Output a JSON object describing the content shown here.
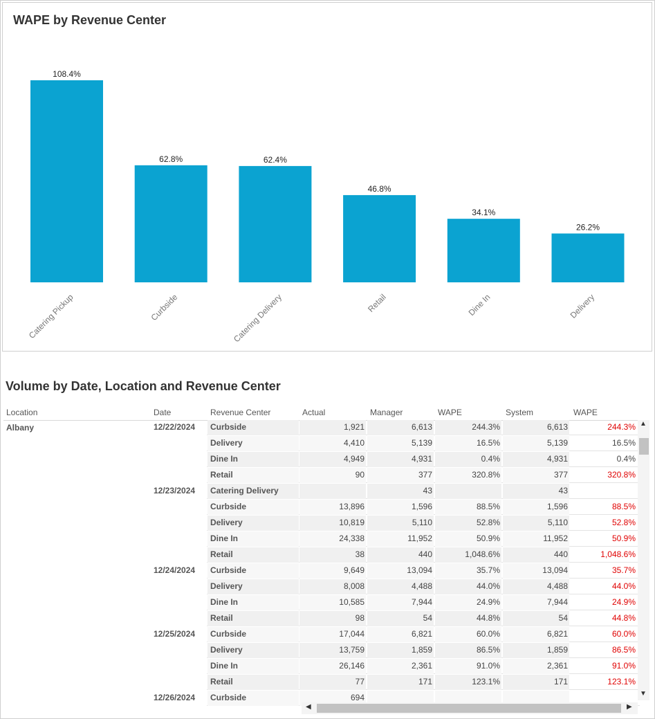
{
  "chart_title": "WAPE by Revenue Center",
  "chart_data": {
    "type": "bar",
    "title": "WAPE by Revenue Center",
    "categories": [
      "Catering Pickup",
      "Curbside",
      "Catering Delivery",
      "Retail",
      "Dine In",
      "Delivery"
    ],
    "values": [
      108.4,
      62.8,
      62.4,
      46.8,
      34.1,
      26.2
    ],
    "labels": [
      "108.4%",
      "62.8%",
      "62.4%",
      "46.8%",
      "34.1%",
      "26.2%"
    ],
    "ylim": [
      0,
      108.4
    ],
    "grid": false,
    "bar_color": "#0ba3d1"
  },
  "table": {
    "title": "Volume by Date, Location and Revenue Center",
    "headers": [
      "Location",
      "Date",
      "Revenue Center",
      "Actual",
      "Manager",
      "WAPE",
      "System",
      "WAPE"
    ],
    "location": "Albany",
    "highlight_color": "#e00000",
    "rows": [
      {
        "date": "12/22/2024",
        "center": "Curbside",
        "actual": "1,921",
        "manager": "6,613",
        "mwape": "244.3%",
        "system": "6,613",
        "swape": "244.3%",
        "red": true
      },
      {
        "date": "",
        "center": "Delivery",
        "actual": "4,410",
        "manager": "5,139",
        "mwape": "16.5%",
        "system": "5,139",
        "swape": "16.5%",
        "red": false
      },
      {
        "date": "",
        "center": "Dine In",
        "actual": "4,949",
        "manager": "4,931",
        "mwape": "0.4%",
        "system": "4,931",
        "swape": "0.4%",
        "red": false
      },
      {
        "date": "",
        "center": "Retail",
        "actual": "90",
        "manager": "377",
        "mwape": "320.8%",
        "system": "377",
        "swape": "320.8%",
        "red": true
      },
      {
        "date": "12/23/2024",
        "center": "Catering Delivery",
        "actual": "",
        "manager": "43",
        "mwape": "",
        "system": "43",
        "swape": "",
        "red": false
      },
      {
        "date": "",
        "center": "Curbside",
        "actual": "13,896",
        "manager": "1,596",
        "mwape": "88.5%",
        "system": "1,596",
        "swape": "88.5%",
        "red": true
      },
      {
        "date": "",
        "center": "Delivery",
        "actual": "10,819",
        "manager": "5,110",
        "mwape": "52.8%",
        "system": "5,110",
        "swape": "52.8%",
        "red": true
      },
      {
        "date": "",
        "center": "Dine In",
        "actual": "24,338",
        "manager": "11,952",
        "mwape": "50.9%",
        "system": "11,952",
        "swape": "50.9%",
        "red": true
      },
      {
        "date": "",
        "center": "Retail",
        "actual": "38",
        "manager": "440",
        "mwape": "1,048.6%",
        "system": "440",
        "swape": "1,048.6%",
        "red": true
      },
      {
        "date": "12/24/2024",
        "center": "Curbside",
        "actual": "9,649",
        "manager": "13,094",
        "mwape": "35.7%",
        "system": "13,094",
        "swape": "35.7%",
        "red": true
      },
      {
        "date": "",
        "center": "Delivery",
        "actual": "8,008",
        "manager": "4,488",
        "mwape": "44.0%",
        "system": "4,488",
        "swape": "44.0%",
        "red": true
      },
      {
        "date": "",
        "center": "Dine In",
        "actual": "10,585",
        "manager": "7,944",
        "mwape": "24.9%",
        "system": "7,944",
        "swape": "24.9%",
        "red": true
      },
      {
        "date": "",
        "center": "Retail",
        "actual": "98",
        "manager": "54",
        "mwape": "44.8%",
        "system": "54",
        "swape": "44.8%",
        "red": true
      },
      {
        "date": "12/25/2024",
        "center": "Curbside",
        "actual": "17,044",
        "manager": "6,821",
        "mwape": "60.0%",
        "system": "6,821",
        "swape": "60.0%",
        "red": true
      },
      {
        "date": "",
        "center": "Delivery",
        "actual": "13,759",
        "manager": "1,859",
        "mwape": "86.5%",
        "system": "1,859",
        "swape": "86.5%",
        "red": true
      },
      {
        "date": "",
        "center": "Dine In",
        "actual": "26,146",
        "manager": "2,361",
        "mwape": "91.0%",
        "system": "2,361",
        "swape": "91.0%",
        "red": true
      },
      {
        "date": "",
        "center": "Retail",
        "actual": "77",
        "manager": "171",
        "mwape": "123.1%",
        "system": "171",
        "swape": "123.1%",
        "red": true
      },
      {
        "date": "12/26/2024",
        "center": "Curbside",
        "actual": "694",
        "manager": "",
        "mwape": "",
        "system": "",
        "swape": "",
        "red": false
      }
    ]
  },
  "scrollbar_arrows": {
    "up": "▲",
    "down": "▼",
    "left": "◀",
    "right": "▶"
  }
}
